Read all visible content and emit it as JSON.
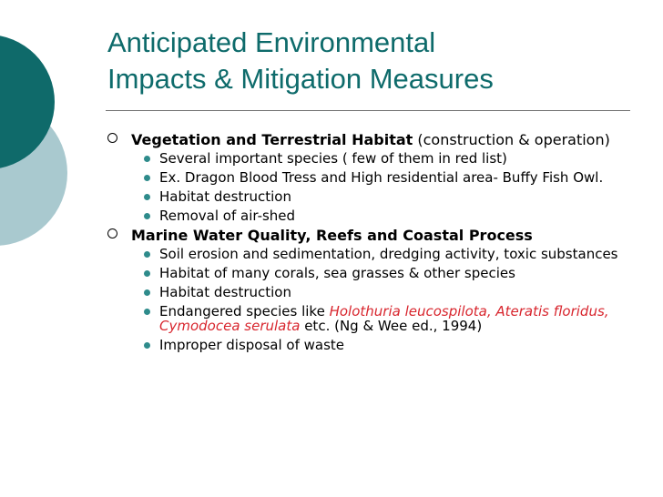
{
  "slide": {
    "title_line1": "Anticipated Environmental",
    "title_line2": "Impacts & Mitigation Measures",
    "sections": [
      {
        "heading_bold": "Vegetation and Terrestrial Habitat",
        "heading_rest": " (construction & operation)",
        "items": [
          "Several important species ( few of them in red list)",
          "Ex. Dragon Blood Tress and High residential area- Buffy Fish Owl.",
          "Habitat destruction",
          "Removal of air-shed"
        ]
      },
      {
        "heading_bold": "Marine Water Quality, Reefs and Coastal Process",
        "items": [
          "Soil erosion and sedimentation, dredging activity, toxic substances",
          "Habitat of many corals, sea grasses & other species",
          "Habitat destruction",
          {
            "prefix": "Endangered species like ",
            "species": "Holothuria leucospilota, Ateratis floridus, Cymodocea serulata",
            "suffix": " etc.  (Ng & Wee ed., 1994)"
          },
          "Improper disposal of waste"
        ]
      }
    ]
  },
  "colors": {
    "title": "#0e6b6b",
    "bullet": "#2e8b8b",
    "species_text": "#d8262e",
    "decor_dark": "#0f6a6a",
    "decor_light": "#a9c9cf"
  }
}
